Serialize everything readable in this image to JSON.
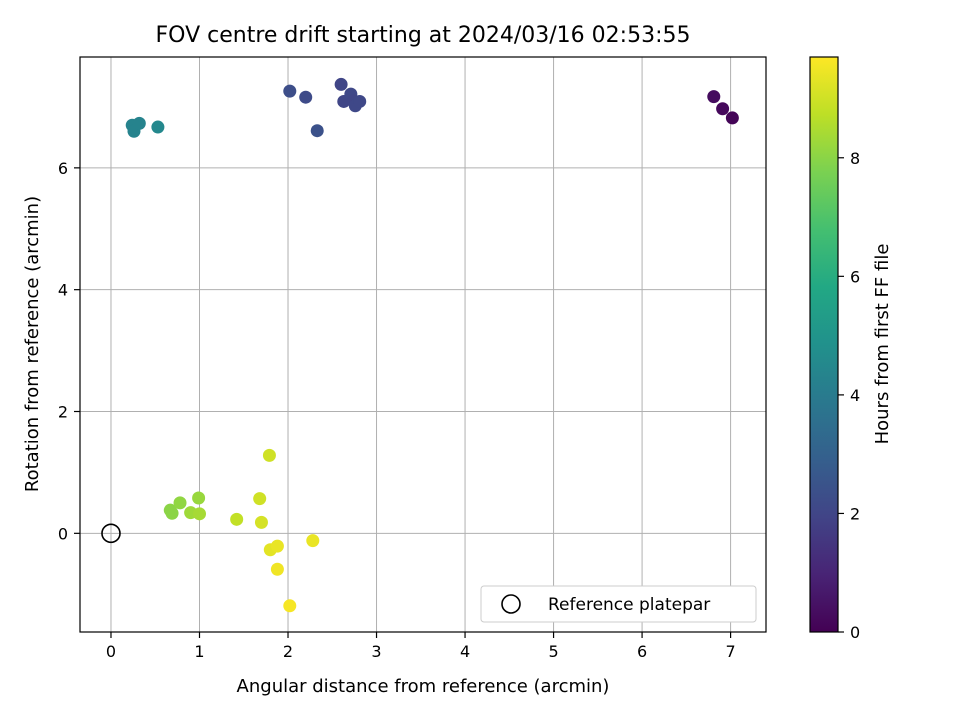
{
  "chart_data": {
    "type": "scatter",
    "title": "FOV centre drift starting at 2024/03/16 02:53:55",
    "xlabel": "Angular distance from reference (arcmin)",
    "ylabel": "Rotation from reference (arcmin)",
    "xlim": [
      -0.35,
      7.4
    ],
    "ylim": [
      -1.62,
      7.82
    ],
    "xticks": [
      0,
      1,
      2,
      3,
      4,
      5,
      6,
      7
    ],
    "yticks": [
      0,
      2,
      4,
      6
    ],
    "grid": true,
    "legend": {
      "placement": "bottom-right",
      "entries": [
        "Reference platepar"
      ]
    },
    "reference_point": {
      "x": 0,
      "y": 0
    },
    "colorbar": {
      "label": "Hours from first FF file",
      "range": [
        0,
        9.7
      ],
      "ticks": [
        0,
        2,
        4,
        6,
        8
      ],
      "colormap": "viridis"
    },
    "points": [
      {
        "x": 7.02,
        "y": 6.82,
        "c": 0.1
      },
      {
        "x": 6.91,
        "y": 6.97,
        "c": 0.2
      },
      {
        "x": 6.81,
        "y": 7.17,
        "c": 0.3
      },
      {
        "x": 2.02,
        "y": 7.26,
        "c": 2.3
      },
      {
        "x": 2.2,
        "y": 7.16,
        "c": 2.2
      },
      {
        "x": 2.33,
        "y": 6.61,
        "c": 2.4
      },
      {
        "x": 2.6,
        "y": 7.37,
        "c": 2.0
      },
      {
        "x": 2.63,
        "y": 7.09,
        "c": 2.0
      },
      {
        "x": 2.71,
        "y": 7.21,
        "c": 2.1
      },
      {
        "x": 2.74,
        "y": 7.1,
        "c": 2.0
      },
      {
        "x": 2.76,
        "y": 7.02,
        "c": 2.1
      },
      {
        "x": 2.81,
        "y": 7.09,
        "c": 2.1
      },
      {
        "x": 0.24,
        "y": 6.7,
        "c": 4.3
      },
      {
        "x": 0.26,
        "y": 6.6,
        "c": 4.3
      },
      {
        "x": 0.32,
        "y": 6.73,
        "c": 4.3
      },
      {
        "x": 0.53,
        "y": 6.67,
        "c": 4.5
      },
      {
        "x": 0.67,
        "y": 0.38,
        "c": 8.0
      },
      {
        "x": 0.69,
        "y": 0.33,
        "c": 8.0
      },
      {
        "x": 0.78,
        "y": 0.5,
        "c": 8.1
      },
      {
        "x": 0.9,
        "y": 0.34,
        "c": 8.3
      },
      {
        "x": 0.99,
        "y": 0.58,
        "c": 8.2
      },
      {
        "x": 1.0,
        "y": 0.32,
        "c": 8.4
      },
      {
        "x": 1.42,
        "y": 0.23,
        "c": 8.8
      },
      {
        "x": 1.68,
        "y": 0.57,
        "c": 9.0
      },
      {
        "x": 1.7,
        "y": 0.18,
        "c": 9.1
      },
      {
        "x": 1.79,
        "y": 1.28,
        "c": 9.0
      },
      {
        "x": 1.8,
        "y": -0.27,
        "c": 9.3
      },
      {
        "x": 1.88,
        "y": -0.21,
        "c": 9.4
      },
      {
        "x": 1.88,
        "y": -0.59,
        "c": 9.5
      },
      {
        "x": 2.02,
        "y": -1.19,
        "c": 9.6
      },
      {
        "x": 2.28,
        "y": -0.12,
        "c": 9.4
      }
    ]
  }
}
